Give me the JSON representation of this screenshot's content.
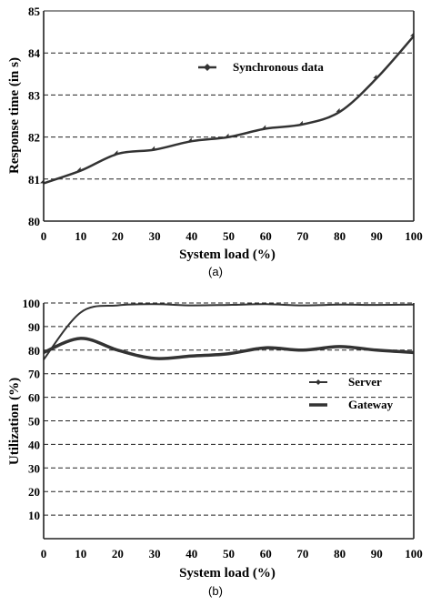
{
  "chart_data": [
    {
      "type": "line",
      "caption": "(a)",
      "xlabel": "System load (%)",
      "ylabel": "Response time (in s)",
      "xlim": [
        0,
        100
      ],
      "ylim": [
        80,
        85
      ],
      "x_ticks": [
        0,
        10,
        20,
        30,
        40,
        50,
        60,
        70,
        80,
        90,
        100
      ],
      "y_ticks": [
        80,
        81,
        82,
        83,
        84,
        85
      ],
      "grid": "horizontal dashed",
      "legend_position": "top-center",
      "series": [
        {
          "name": "Synchronous data",
          "marker": "diamond",
          "color": "#333333",
          "x": [
            0,
            10,
            20,
            30,
            40,
            50,
            60,
            70,
            80,
            90,
            100
          ],
          "y": [
            80.9,
            81.2,
            81.6,
            81.7,
            81.9,
            82.0,
            82.2,
            82.3,
            82.6,
            83.4,
            84.4
          ]
        }
      ]
    },
    {
      "type": "line",
      "caption": "(b)",
      "xlabel": "System load (%)",
      "ylabel": "Utilization (%)",
      "xlim": [
        0,
        100
      ],
      "ylim": [
        0,
        100
      ],
      "x_ticks": [
        0,
        10,
        20,
        30,
        40,
        50,
        60,
        70,
        80,
        90,
        100
      ],
      "y_ticks": [
        10,
        20,
        30,
        40,
        50,
        60,
        70,
        80,
        90,
        100
      ],
      "grid": "horizontal dashed",
      "legend_position": "right-center",
      "series": [
        {
          "name": "Server",
          "marker": "diamond",
          "color": "#333333",
          "x": [
            0,
            10,
            20,
            30,
            40,
            50,
            60,
            70,
            80,
            90,
            100
          ],
          "y": [
            76,
            96,
            99,
            99.5,
            99,
            99.2,
            99.5,
            99,
            99.3,
            99.2,
            99.3
          ]
        },
        {
          "name": "Gateway",
          "marker": "none",
          "color": "#333333",
          "x": [
            0,
            10,
            20,
            30,
            40,
            50,
            60,
            70,
            80,
            90,
            100
          ],
          "y": [
            79,
            85,
            80,
            76.5,
            77.5,
            78.5,
            81,
            80,
            81.5,
            80,
            79
          ]
        }
      ]
    }
  ]
}
